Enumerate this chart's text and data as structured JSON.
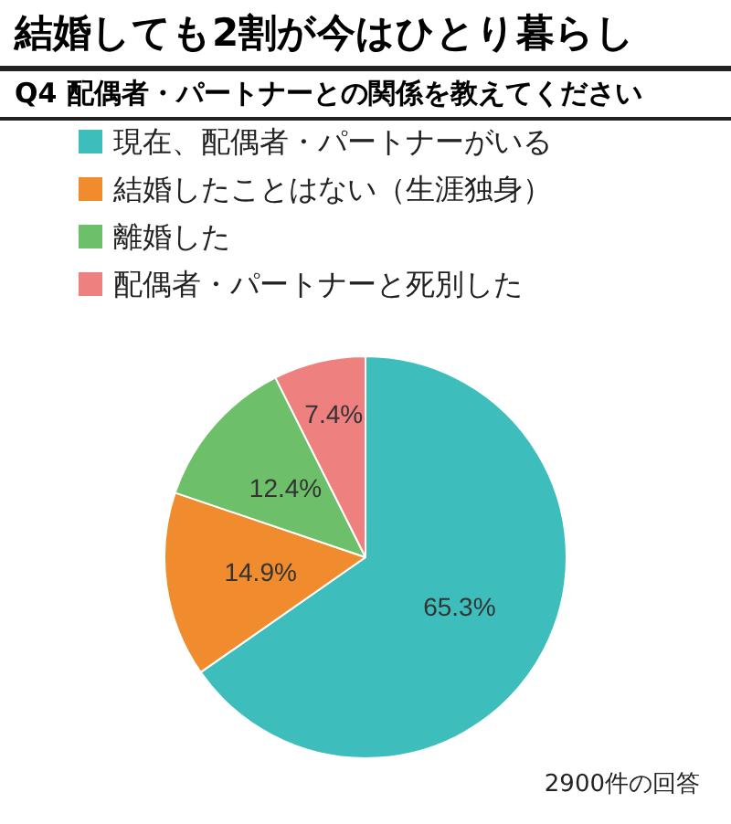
{
  "chart_data": {
    "type": "pie",
    "title": "結婚しても2割が今はひとり暮らし",
    "subtitle": "Q4 配偶者・パートナーとの関係を教えてください",
    "categories": [
      "現在、配偶者・パートナーがいる",
      "結婚したことはない（生涯独身）",
      "離婚した",
      "配偶者・パートナーと死別した"
    ],
    "values": [
      65.3,
      14.9,
      12.4,
      7.4
    ],
    "colors": [
      "#3dbdbb",
      "#f08c2e",
      "#6dbf6a",
      "#ee8080"
    ],
    "value_labels": [
      "65.3%",
      "14.9%",
      "12.4%",
      "7.4%"
    ],
    "legend": "top left",
    "annotations": [
      "2900件の回答"
    ]
  }
}
